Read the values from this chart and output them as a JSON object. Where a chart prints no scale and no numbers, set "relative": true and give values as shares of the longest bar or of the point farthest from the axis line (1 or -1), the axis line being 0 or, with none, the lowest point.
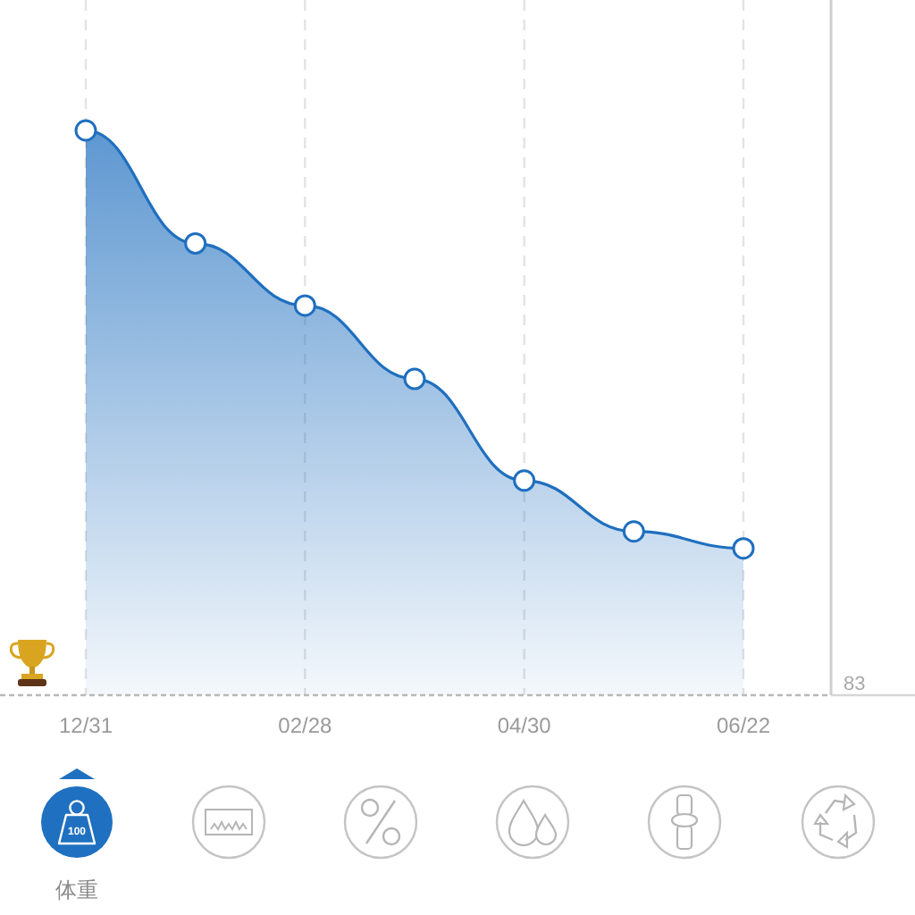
{
  "chart_data": {
    "type": "area",
    "relative": true,
    "categories": [
      "12/31",
      null,
      "02/28",
      null,
      "04/30",
      null,
      "06/22"
    ],
    "series": [
      {
        "color": "#1f6fbf",
        "values": [
          1,
          0.8,
          0.69,
          0.56,
          0.38,
          0.29,
          0.26
        ]
      }
    ],
    "marker": "circle",
    "line_style": "solid",
    "grid": "x",
    "annotations": [
      "83",
      "体重",
      "100"
    ]
  }
}
